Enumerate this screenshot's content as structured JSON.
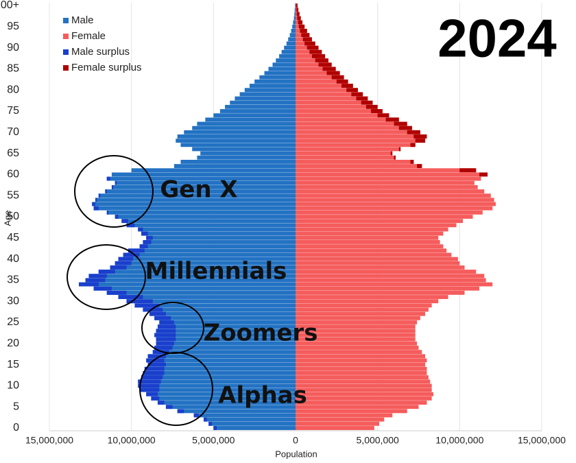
{
  "chart_data": {
    "type": "pyramid",
    "title": "2024",
    "xlabel": "Population",
    "ylabel": "Age",
    "categories": [
      "0",
      null,
      null,
      null,
      null,
      "5",
      null,
      null,
      null,
      null,
      "10",
      null,
      null,
      null,
      null,
      "15",
      null,
      null,
      null,
      null,
      "20",
      null,
      null,
      null,
      null,
      "25",
      null,
      null,
      null,
      null,
      "30",
      null,
      null,
      null,
      null,
      "35",
      null,
      null,
      null,
      null,
      "40",
      null,
      null,
      null,
      null,
      "45",
      null,
      null,
      null,
      null,
      "50",
      null,
      null,
      null,
      null,
      "55",
      null,
      null,
      null,
      null,
      "60",
      null,
      null,
      null,
      null,
      "65",
      null,
      null,
      null,
      null,
      "70",
      null,
      null,
      null,
      null,
      "75",
      null,
      null,
      null,
      null,
      "80",
      null,
      null,
      null,
      null,
      "85",
      null,
      null,
      null,
      null,
      "90",
      null,
      null,
      null,
      null,
      "95",
      null,
      null,
      null,
      null,
      "100+"
    ],
    "series": [
      {
        "name": "Male",
        "color": "#2372c3",
        "side": "left",
        "values": [
          5000000,
          5300000,
          5600000,
          6200000,
          7200000,
          7900000,
          8400000,
          8800000,
          9100000,
          9500000,
          9600000,
          9600000,
          9400000,
          9300000,
          9200000,
          9000000,
          9100000,
          9000000,
          8700000,
          8600000,
          8500000,
          8500000,
          8600000,
          8500000,
          8400000,
          8300000,
          8600000,
          8900000,
          9300000,
          9800000,
          10300000,
          10800000,
          11500000,
          12300000,
          13200000,
          12800000,
          12600000,
          12000000,
          11300000,
          11000000,
          10800000,
          10500000,
          10200000,
          9500000,
          9300000,
          9100000,
          9400000,
          9600000,
          10300000,
          10600000,
          11000000,
          11500000,
          12300000,
          12400000,
          12200000,
          12000000,
          11600000,
          11200000,
          11000000,
          11500000,
          11200000,
          10000000,
          7400000,
          7000000,
          6000000,
          5800000,
          6300000,
          7000000,
          7300000,
          7200000,
          6800000,
          6300000,
          6000000,
          5500000,
          5000000,
          4600000,
          4300000,
          4000000,
          3700000,
          3400000,
          3100000,
          2800000,
          2500000,
          2200000,
          1900000,
          1650000,
          1400000,
          1200000,
          1000000,
          850000,
          700000,
          550000,
          450000,
          350000,
          270000,
          200000,
          150000,
          100000,
          70000,
          50000,
          30000
        ]
      },
      {
        "name": "Female",
        "color": "#f55c5c",
        "side": "right",
        "values": [
          4800000,
          5100000,
          5400000,
          5900000,
          6800000,
          7500000,
          8000000,
          8300000,
          8400000,
          8300000,
          8300000,
          8200000,
          8100000,
          8000000,
          8000000,
          7900000,
          8000000,
          7900000,
          7700000,
          7500000,
          7400000,
          7300000,
          7300000,
          7300000,
          7300000,
          7400000,
          7600000,
          7900000,
          8100000,
          8300000,
          8700000,
          9300000,
          10300000,
          11200000,
          12000000,
          11600000,
          11500000,
          11000000,
          10300000,
          10000000,
          9900000,
          9500000,
          9200000,
          9000000,
          8800000,
          8700000,
          9000000,
          9300000,
          9800000,
          10200000,
          10800000,
          11400000,
          12000000,
          12200000,
          12100000,
          11900000,
          11500000,
          11100000,
          10900000,
          11300000,
          11700000,
          11000000,
          7700000,
          7200000,
          6100000,
          5900000,
          6400000,
          7300000,
          7900000,
          8000000,
          7600000,
          7100000,
          6800000,
          6300000,
          5700000,
          5300000,
          5000000,
          4700000,
          4400000,
          4100000,
          3800000,
          3500000,
          3200000,
          2950000,
          2700000,
          2450000,
          2200000,
          2000000,
          1800000,
          1600000,
          1400000,
          1200000,
          1000000,
          850000,
          700000,
          550000,
          420000,
          320000,
          240000,
          170000,
          120000
        ]
      }
    ],
    "surplus": [
      {
        "name": "Male surplus",
        "color": "#1a3fcc"
      },
      {
        "name": "Female surplus",
        "color": "#b00000"
      }
    ],
    "xlim": [
      -15000000,
      15000000
    ],
    "xticks": [
      {
        "value": -15000000,
        "label": "15,000,000"
      },
      {
        "value": -10000000,
        "label": "10,000,000"
      },
      {
        "value": -5000000,
        "label": "5,000,000"
      },
      0,
      {
        "value": 5000000,
        "label": "5,000,000"
      },
      {
        "value": 10000000,
        "label": "10,000,000"
      },
      {
        "value": 15000000,
        "label": "15,000,000"
      }
    ],
    "grid": true,
    "annotations": [
      "Gen X",
      "Millennials",
      "Zoomers",
      "Alphas"
    ]
  }
}
